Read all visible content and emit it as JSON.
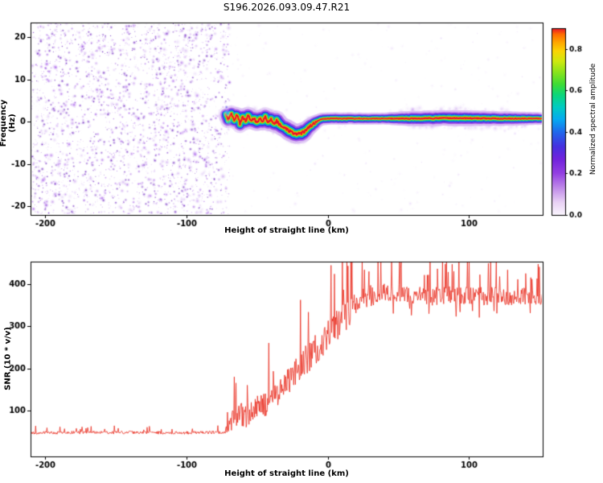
{
  "figure": {
    "title": "S196.2026.093.09.47.R21"
  },
  "chart_data": [
    {
      "type": "heatmap",
      "title": "S196.2026.093.09.47.R21",
      "xlabel": "Height of straight line (km)",
      "ylabel": "Frequency (Hz)",
      "xlim": [
        -210,
        152
      ],
      "ylim": [
        -22,
        23.5
      ],
      "x_ticks": [
        -200,
        -100,
        0,
        100
      ],
      "x_ticklabels": [
        "-200",
        "-100",
        "0",
        "100"
      ],
      "y_ticks": [
        20,
        10,
        0,
        -10,
        -20
      ],
      "y_ticklabels": [
        "20",
        "10",
        "0",
        "-10",
        "-20"
      ],
      "seed": 1337,
      "colorbar": {
        "label": "Normalized spectral amplitude",
        "range": [
          0,
          0.9
        ],
        "ticks": [
          0,
          0.2,
          0.4,
          0.6,
          0.8
        ],
        "ticklabels": [
          "0.0",
          "0.2",
          "0.4",
          "0.6",
          "0.8"
        ],
        "stops": [
          [
            0.0,
            "#faf5fe"
          ],
          [
            0.06,
            "#e9d2f5"
          ],
          [
            0.13,
            "#c08ae9"
          ],
          [
            0.2,
            "#9440e2"
          ],
          [
            0.27,
            "#7122dd"
          ],
          [
            0.33,
            "#4530e0"
          ],
          [
            0.4,
            "#2069ec"
          ],
          [
            0.46,
            "#06aaf1"
          ],
          [
            0.52,
            "#00ccc2"
          ],
          [
            0.58,
            "#0cd678"
          ],
          [
            0.63,
            "#3fdc35"
          ],
          [
            0.69,
            "#8ce41c"
          ],
          [
            0.74,
            "#cfe90f"
          ],
          [
            0.79,
            "#fbd405"
          ],
          [
            0.83,
            "#ffa800"
          ],
          [
            0.87,
            "#ff6d00"
          ],
          [
            0.9,
            "#e8112d"
          ]
        ]
      },
      "noise": {
        "x_start": -210,
        "x_end": -71,
        "palette": [
          "#c9a2ee",
          "#b67fe8",
          "#a35ce3",
          "#8a2be2",
          "#d9bdf4",
          "#7a1ad6"
        ],
        "dark": "#5c0cb8"
      },
      "signal": {
        "x_start": -72,
        "x_end": 152,
        "path": [
          [
            -72.5,
            2.0
          ],
          [
            -70,
            0.3
          ],
          [
            -68,
            2.2
          ],
          [
            -66,
            0.0
          ],
          [
            -64,
            1.8
          ],
          [
            -62,
            -0.4
          ],
          [
            -60,
            1.2
          ],
          [
            -58,
            0.2
          ],
          [
            -56,
            1.6
          ],
          [
            -54,
            0.0
          ],
          [
            -52,
            0.9
          ],
          [
            -50,
            -0.3
          ],
          [
            -48,
            0.8
          ],
          [
            -46,
            0.3
          ],
          [
            -44,
            1.1
          ],
          [
            -42,
            -0.2
          ],
          [
            -40,
            0.6
          ],
          [
            -38,
            -0.6
          ],
          [
            -36,
            0.2
          ],
          [
            -33,
            -1.0
          ],
          [
            -30,
            -1.6
          ],
          [
            -27,
            -2.1
          ],
          [
            -24,
            -2.6
          ],
          [
            -21,
            -2.9
          ],
          [
            -18,
            -2.6
          ],
          [
            -15,
            -1.9
          ],
          [
            -12,
            -1.0
          ],
          [
            -9,
            -0.2
          ],
          [
            -6,
            0.4
          ],
          [
            -3,
            0.7
          ],
          [
            0,
            0.8
          ],
          [
            10,
            0.8
          ],
          [
            30,
            0.8
          ],
          [
            60,
            0.8
          ],
          [
            90,
            0.9
          ],
          [
            120,
            0.8
          ],
          [
            152,
            0.8
          ]
        ],
        "width_profile": [
          [
            -72,
            1.3
          ],
          [
            -55,
            1.45
          ],
          [
            -35,
            1.5
          ],
          [
            -18,
            1.55
          ],
          [
            -10,
            1.15
          ],
          [
            -2,
            1.0
          ],
          [
            40,
            0.95
          ],
          [
            60,
            1.25
          ],
          [
            95,
            1.3
          ],
          [
            130,
            1.15
          ],
          [
            152,
            1.0
          ]
        ],
        "layers": [
          {
            "color": "#d8b9f2",
            "width": 15.0,
            "alpha": 0.3
          },
          {
            "color": "#9b4ae4",
            "width": 10.5,
            "alpha": 0.45
          },
          {
            "color": "#3b2ee0",
            "width": 7.6,
            "alpha": 0.8
          },
          {
            "color": "#06aaf1",
            "width": 5.6,
            "alpha": 0.9
          },
          {
            "color": "#0cd678",
            "width": 4.2,
            "alpha": 0.92
          },
          {
            "color": "#a6e616",
            "width": 3.0,
            "alpha": 0.95
          },
          {
            "color": "#ffa800",
            "width": 2.1,
            "alpha": 0.95
          },
          {
            "color": "#e8112d",
            "width": 1.25,
            "alpha": 1.0
          }
        ],
        "fuzz_ranges": [
          [
            -72,
            -12,
            220
          ],
          [
            50,
            140,
            200
          ],
          [
            -40,
            -25,
            60
          ]
        ],
        "onset": [
          [
            -71,
            2,
            5,
            "#06aaf1",
            0.9
          ],
          [
            -70,
            0,
            4,
            "#0cd678",
            0.9
          ],
          [
            -71.5,
            3.5,
            3,
            "#3b2ee0",
            0.8
          ]
        ]
      }
    },
    {
      "type": "line",
      "xlabel": "Height of straight line (km)",
      "ylabel": "SNR (10 * v/v)",
      "xlim": [
        -210,
        152
      ],
      "ylim": [
        -9,
        453
      ],
      "x_ticks": [
        -200,
        -100,
        0,
        100
      ],
      "x_ticklabels": [
        "-200",
        "-100",
        "0",
        "100"
      ],
      "y_ticks": [
        100,
        200,
        300,
        400
      ],
      "y_ticklabels": [
        "100",
        "200",
        "300",
        "400"
      ],
      "seed": 2024,
      "series": [
        {
          "name": "SNR",
          "color": "#e8291c",
          "linewidth": 0.8,
          "step_km": 0.4,
          "spike_prob": 0.07,
          "dip_prob": 0.05,
          "mean_anchors": [
            [
              -210,
              47
            ],
            [
              -150,
              48
            ],
            [
              -100,
              47
            ],
            [
              -80,
              48
            ],
            [
              -74,
              48
            ],
            [
              -70,
              60
            ],
            [
              -66,
              85
            ],
            [
              -62,
              95
            ],
            [
              -58,
              85
            ],
            [
              -54,
              100
            ],
            [
              -50,
              110
            ],
            [
              -46,
              105
            ],
            [
              -42,
              125
            ],
            [
              -38,
              135
            ],
            [
              -34,
              150
            ],
            [
              -30,
              165
            ],
            [
              -26,
              175
            ],
            [
              -22,
              190
            ],
            [
              -18,
              210
            ],
            [
              -14,
              225
            ],
            [
              -10,
              240
            ],
            [
              -6,
              255
            ],
            [
              -2,
              270
            ],
            [
              2,
              285
            ],
            [
              6,
              300
            ],
            [
              10,
              315
            ],
            [
              14,
              330
            ],
            [
              18,
              345
            ],
            [
              22,
              358
            ],
            [
              26,
              368
            ],
            [
              30,
              372
            ],
            [
              40,
              378
            ],
            [
              50,
              380
            ],
            [
              60,
              374
            ],
            [
              70,
              370
            ],
            [
              80,
              372
            ],
            [
              90,
              375
            ],
            [
              100,
              372
            ],
            [
              110,
              370
            ],
            [
              120,
              372
            ],
            [
              130,
              368
            ],
            [
              140,
              372
            ],
            [
              152,
              370
            ]
          ],
          "amp_anchors": [
            [
              -210,
              9
            ],
            [
              -100,
              9
            ],
            [
              -75,
              9
            ],
            [
              -71,
              25
            ],
            [
              -67,
              60
            ],
            [
              -60,
              75
            ],
            [
              -50,
              75
            ],
            [
              -40,
              80
            ],
            [
              -30,
              85
            ],
            [
              -20,
              90
            ],
            [
              -10,
              90
            ],
            [
              0,
              90
            ],
            [
              8,
              95
            ],
            [
              16,
              90
            ],
            [
              24,
              75
            ],
            [
              32,
              60
            ],
            [
              45,
              55
            ],
            [
              60,
              52
            ],
            [
              80,
              55
            ],
            [
              100,
              55
            ],
            [
              120,
              55
            ],
            [
              152,
              50
            ]
          ]
        }
      ]
    }
  ]
}
